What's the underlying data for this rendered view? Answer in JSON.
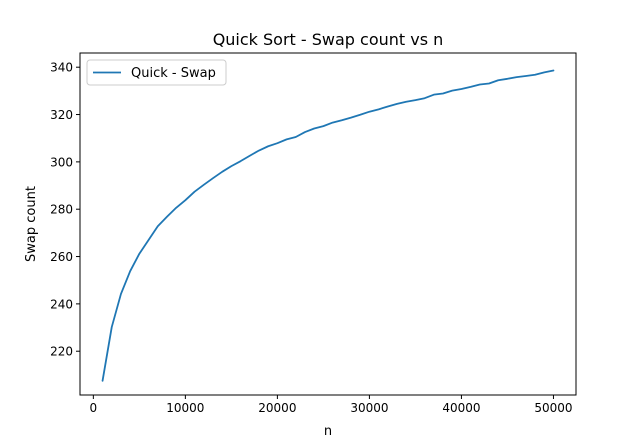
{
  "chart_data": {
    "type": "line",
    "title": "Quick Sort - Swap count vs n",
    "xlabel": "n",
    "ylabel": "Swap count",
    "xlim": [
      -1450,
      52450
    ],
    "ylim": [
      201.5,
      346.0
    ],
    "xticks": [
      0,
      10000,
      20000,
      30000,
      40000,
      50000
    ],
    "yticks": [
      220,
      240,
      260,
      280,
      300,
      320,
      340
    ],
    "grid": false,
    "legend_position": "top-left",
    "series": [
      {
        "name": "Quick - Swap",
        "color": "#1f77b4",
        "x": [
          1000,
          2000,
          3000,
          4000,
          5000,
          6000,
          7000,
          8000,
          9000,
          10000,
          11000,
          12000,
          13000,
          14000,
          15000,
          16000,
          17000,
          18000,
          19000,
          20000,
          21000,
          22000,
          23000,
          24000,
          25000,
          26000,
          27000,
          28000,
          29000,
          30000,
          31000,
          32000,
          33000,
          34000,
          35000,
          36000,
          37000,
          38000,
          39000,
          40000,
          41000,
          42000,
          43000,
          44000,
          45000,
          46000,
          47000,
          48000,
          49000,
          50000
        ],
        "y": [
          207.5,
          230.2,
          244.2,
          253.8,
          261.2,
          267.0,
          272.8,
          276.8,
          280.6,
          283.8,
          287.4,
          290.3,
          293.1,
          295.8,
          298.2,
          300.3,
          302.6,
          304.8,
          306.6,
          307.9,
          309.5,
          310.5,
          312.6,
          314.1,
          315.1,
          316.6,
          317.6,
          318.7,
          319.9,
          321.2,
          322.2,
          323.4,
          324.5,
          325.4,
          326.1,
          326.9,
          328.4,
          328.9,
          330.1,
          330.8,
          331.7,
          332.7,
          333.1,
          334.5,
          335.1,
          335.8,
          336.3,
          336.8,
          337.8,
          338.6
        ]
      }
    ]
  }
}
